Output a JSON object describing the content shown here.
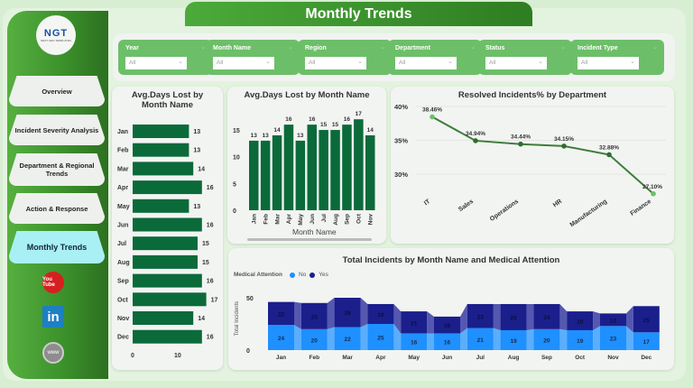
{
  "title": "Monthly Trends",
  "logo": {
    "text": "NGT",
    "subtitle": "NEXT GEN TEMPLATES"
  },
  "sidebar": {
    "items": [
      {
        "label": "Overview"
      },
      {
        "label": "Incident Severity Analysis"
      },
      {
        "label": "Department & Regional Trends"
      },
      {
        "label": "Action & Response"
      },
      {
        "label": "Monthly Trends",
        "active": true
      }
    ],
    "social": [
      {
        "icon": "youtube-icon",
        "label": "You Tube"
      },
      {
        "icon": "linkedin-icon",
        "label": "in"
      },
      {
        "icon": "website-icon",
        "label": "www"
      }
    ]
  },
  "filters": [
    {
      "label": "Year",
      "value": "All"
    },
    {
      "label": "Month Name",
      "value": "All"
    },
    {
      "label": "Region",
      "value": "All"
    },
    {
      "label": "Department",
      "value": "All"
    },
    {
      "label": "Status",
      "value": "All"
    },
    {
      "label": "Incident Type",
      "value": "All"
    }
  ],
  "colors": {
    "bar": "#0b6a3a",
    "line": "#3d7d3a",
    "no": "#1e90ff",
    "yes": "#1a1f8c",
    "accent": "#4caa3a",
    "active_nav": "#a9f0f4"
  },
  "chart_data": [
    {
      "type": "bar",
      "orientation": "horizontal",
      "title": "Avg.Days Lost by Month Name",
      "categories": [
        "Jan",
        "Feb",
        "Mar",
        "Apr",
        "May",
        "Jun",
        "Jul",
        "Aug",
        "Sep",
        "Oct",
        "Nov",
        "Dec"
      ],
      "values": [
        13,
        13,
        14,
        16,
        13,
        16,
        15,
        15,
        16,
        17,
        14,
        16
      ],
      "xticks": [
        0,
        10
      ]
    },
    {
      "type": "bar",
      "title": "Avg.Days Lost by Month Name",
      "xlabel": "Month Name",
      "categories": [
        "Jan",
        "Feb",
        "Mar",
        "Apr",
        "May",
        "Jun",
        "Jul",
        "Aug",
        "Sep",
        "Oct",
        "Nov"
      ],
      "values": [
        13,
        13,
        14,
        16,
        13,
        16,
        15,
        15,
        16,
        17,
        14
      ],
      "yticks": [
        0,
        5,
        10,
        15
      ],
      "scrollbar": true
    },
    {
      "type": "line",
      "title": "Resolved Incidents% by Department",
      "categories": [
        "IT",
        "Sales",
        "Operations",
        "HR",
        "Manufacturing",
        "Finance"
      ],
      "values": [
        38.46,
        34.94,
        34.44,
        34.15,
        32.88,
        27.1
      ],
      "labels": [
        "38.46%",
        "34.94%",
        "34.44%",
        "34.15%",
        "32.88%",
        "27.10%"
      ],
      "yticks": [
        "30%",
        "35%",
        "40%"
      ],
      "ytick_values": [
        30,
        35,
        40
      ]
    },
    {
      "type": "bar",
      "stacked": true,
      "title": "Total Incidents by Month Name and Medical Attention",
      "ylabel": "Total Incidents",
      "legend_title": "Medical Attention",
      "legend": "top-left",
      "categories": [
        "Jan",
        "Feb",
        "Mar",
        "Apr",
        "May",
        "Jun",
        "Jul",
        "Aug",
        "Sep",
        "Oct",
        "Nov",
        "Dec"
      ],
      "series": [
        {
          "name": "No",
          "values": [
            24,
            20,
            22,
            25,
            16,
            16,
            21,
            19,
            20,
            19,
            23,
            17
          ]
        },
        {
          "name": "Yes",
          "values": [
            22,
            25,
            28,
            19,
            21,
            16,
            23,
            25,
            24,
            18,
            12,
            25
          ]
        }
      ],
      "yticks": [
        0,
        50
      ]
    }
  ]
}
